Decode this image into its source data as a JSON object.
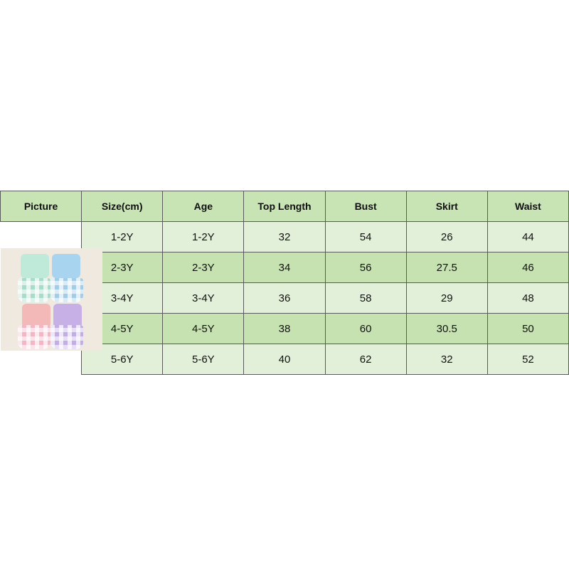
{
  "headers": [
    "Picture",
    "Size(cm)",
    "Age",
    "Top Length",
    "Bust",
    "Skirt",
    "Waist"
  ],
  "rows": [
    [
      "1-2Y",
      "1-2Y",
      "32",
      "54",
      "26",
      "44"
    ],
    [
      "2-3Y",
      "2-3Y",
      "34",
      "56",
      "27.5",
      "46"
    ],
    [
      "3-4Y",
      "3-4Y",
      "36",
      "58",
      "29",
      "48"
    ],
    [
      "4-5Y",
      "4-5Y",
      "38",
      "60",
      "30.5",
      "50"
    ],
    [
      "5-6Y",
      "5-6Y",
      "40",
      "62",
      "32",
      "52"
    ]
  ],
  "colors": {
    "header": "#c8e3b4",
    "row_light": "#e3f0d9",
    "row_dark": "#c6e2b1"
  }
}
